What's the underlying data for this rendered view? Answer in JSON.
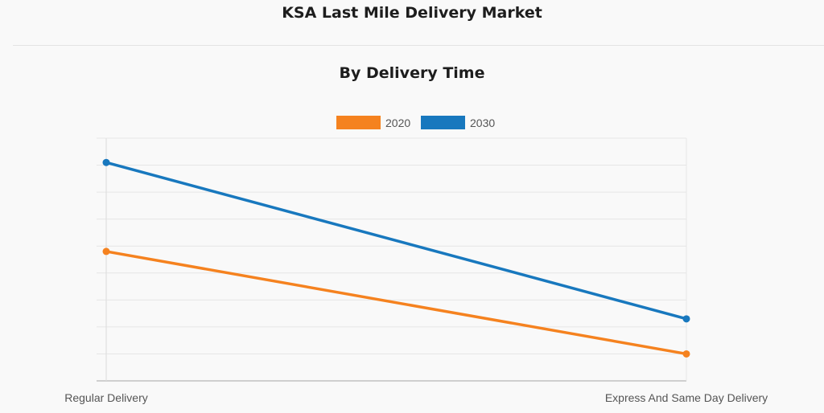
{
  "header": {
    "title": "KSA Last Mile Delivery Market"
  },
  "chart_data": {
    "type": "line",
    "title": "By Delivery Time",
    "categories": [
      "Regular Delivery",
      "Express And Same Day Delivery"
    ],
    "series": [
      {
        "name": "2020",
        "color": "#f5821f",
        "values": [
          4.8,
          1.0
        ]
      },
      {
        "name": "2030",
        "color": "#1878be",
        "values": [
          8.1,
          2.3
        ]
      }
    ],
    "ylim": [
      0,
      9
    ],
    "y_tick_labels_shown": false,
    "grid": true,
    "legend": "top-center",
    "xlabel": "",
    "ylabel": ""
  }
}
